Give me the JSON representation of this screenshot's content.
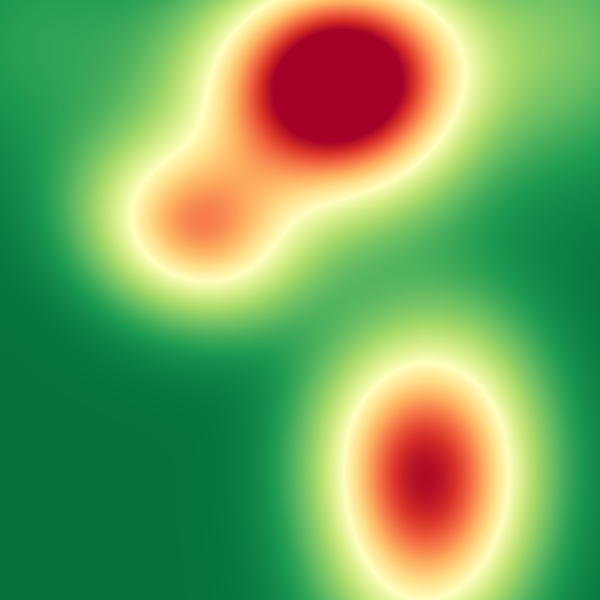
{
  "image": {
    "description_kind": "smooth heat map, no visible text",
    "colormap": {
      "name": "RdYlGn-reversed",
      "stops": [
        "#006837",
        "#1a9850",
        "#66bd63",
        "#a6d96a",
        "#d9ef8b",
        "#ffffbf",
        "#fee08b",
        "#fdae61",
        "#f46d43",
        "#d73027",
        "#a50026"
      ]
    },
    "hotspots": [
      {
        "label": "top-peak"
      },
      {
        "label": "upper-left-shoulder"
      },
      {
        "label": "bottom-right-peak"
      }
    ]
  }
}
